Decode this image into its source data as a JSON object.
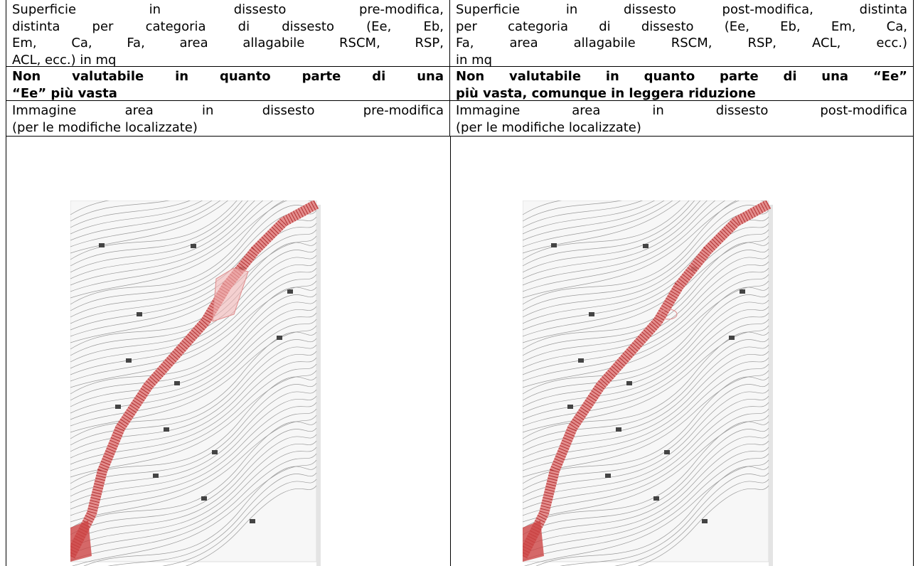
{
  "table": {
    "rows": [
      [
        [
          "Superficie in dissesto pre-modifica,",
          "distinta per categoria di dissesto (Ee, Eb,",
          "Em, Ca, Fa, area allagabile RSCM, RSP,",
          "ACL, ecc.) in mq"
        ],
        [
          "Superficie in dissesto post-modifica, distinta",
          "per categoria di dissesto (Ee, Eb, Em, Ca,",
          "Fa, area allagabile RSCM, RSP, ACL, ecc.)",
          "in mq"
        ]
      ],
      [
        [
          "Non valutabile in quanto parte di una",
          "“Ee” più vasta"
        ],
        [
          "Non valutabile in quanto parte di una “Ee”",
          "più vasta, comunque in leggera riduzione"
        ]
      ],
      [
        [
          "Immagine area in dissesto pre-modifica",
          "(per le modifiche localizzate)"
        ],
        [
          "Immagine area in dissesto post-modifica",
          "(per le modifiche localizzate)"
        ]
      ]
    ]
  }
}
